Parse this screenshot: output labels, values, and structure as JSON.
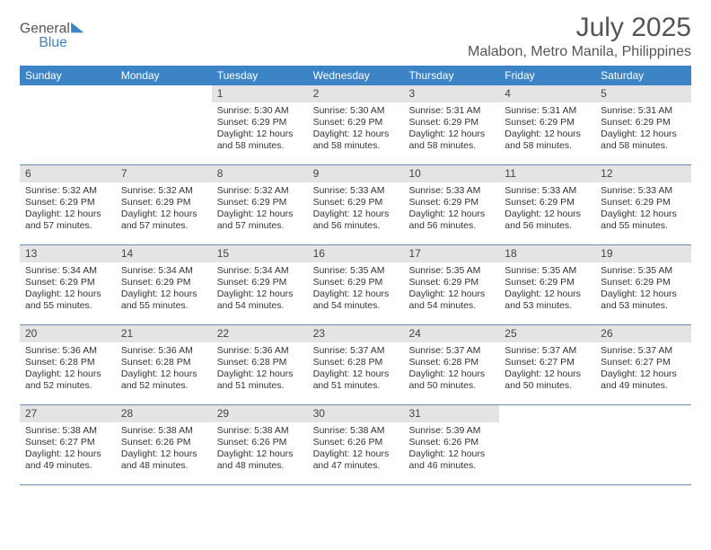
{
  "brand": {
    "name_top": "General",
    "name_bottom": "Blue",
    "accent": "#3d84c6"
  },
  "title": "July 2025",
  "location": "Malabon, Metro Manila, Philippines",
  "colors": {
    "header_bg": "#3d84c6",
    "daynum_bg": "#e4e4e4",
    "week_divider": "#6b8bb0",
    "text": "#333333",
    "title_text": "#555555"
  },
  "dow": [
    "Sunday",
    "Monday",
    "Tuesday",
    "Wednesday",
    "Thursday",
    "Friday",
    "Saturday"
  ],
  "weeks": [
    [
      null,
      null,
      {
        "n": "1",
        "sunrise": "Sunrise: 5:30 AM",
        "sunset": "Sunset: 6:29 PM",
        "daylight": "Daylight: 12 hours and 58 minutes."
      },
      {
        "n": "2",
        "sunrise": "Sunrise: 5:30 AM",
        "sunset": "Sunset: 6:29 PM",
        "daylight": "Daylight: 12 hours and 58 minutes."
      },
      {
        "n": "3",
        "sunrise": "Sunrise: 5:31 AM",
        "sunset": "Sunset: 6:29 PM",
        "daylight": "Daylight: 12 hours and 58 minutes."
      },
      {
        "n": "4",
        "sunrise": "Sunrise: 5:31 AM",
        "sunset": "Sunset: 6:29 PM",
        "daylight": "Daylight: 12 hours and 58 minutes."
      },
      {
        "n": "5",
        "sunrise": "Sunrise: 5:31 AM",
        "sunset": "Sunset: 6:29 PM",
        "daylight": "Daylight: 12 hours and 58 minutes."
      }
    ],
    [
      {
        "n": "6",
        "sunrise": "Sunrise: 5:32 AM",
        "sunset": "Sunset: 6:29 PM",
        "daylight": "Daylight: 12 hours and 57 minutes."
      },
      {
        "n": "7",
        "sunrise": "Sunrise: 5:32 AM",
        "sunset": "Sunset: 6:29 PM",
        "daylight": "Daylight: 12 hours and 57 minutes."
      },
      {
        "n": "8",
        "sunrise": "Sunrise: 5:32 AM",
        "sunset": "Sunset: 6:29 PM",
        "daylight": "Daylight: 12 hours and 57 minutes."
      },
      {
        "n": "9",
        "sunrise": "Sunrise: 5:33 AM",
        "sunset": "Sunset: 6:29 PM",
        "daylight": "Daylight: 12 hours and 56 minutes."
      },
      {
        "n": "10",
        "sunrise": "Sunrise: 5:33 AM",
        "sunset": "Sunset: 6:29 PM",
        "daylight": "Daylight: 12 hours and 56 minutes."
      },
      {
        "n": "11",
        "sunrise": "Sunrise: 5:33 AM",
        "sunset": "Sunset: 6:29 PM",
        "daylight": "Daylight: 12 hours and 56 minutes."
      },
      {
        "n": "12",
        "sunrise": "Sunrise: 5:33 AM",
        "sunset": "Sunset: 6:29 PM",
        "daylight": "Daylight: 12 hours and 55 minutes."
      }
    ],
    [
      {
        "n": "13",
        "sunrise": "Sunrise: 5:34 AM",
        "sunset": "Sunset: 6:29 PM",
        "daylight": "Daylight: 12 hours and 55 minutes."
      },
      {
        "n": "14",
        "sunrise": "Sunrise: 5:34 AM",
        "sunset": "Sunset: 6:29 PM",
        "daylight": "Daylight: 12 hours and 55 minutes."
      },
      {
        "n": "15",
        "sunrise": "Sunrise: 5:34 AM",
        "sunset": "Sunset: 6:29 PM",
        "daylight": "Daylight: 12 hours and 54 minutes."
      },
      {
        "n": "16",
        "sunrise": "Sunrise: 5:35 AM",
        "sunset": "Sunset: 6:29 PM",
        "daylight": "Daylight: 12 hours and 54 minutes."
      },
      {
        "n": "17",
        "sunrise": "Sunrise: 5:35 AM",
        "sunset": "Sunset: 6:29 PM",
        "daylight": "Daylight: 12 hours and 54 minutes."
      },
      {
        "n": "18",
        "sunrise": "Sunrise: 5:35 AM",
        "sunset": "Sunset: 6:29 PM",
        "daylight": "Daylight: 12 hours and 53 minutes."
      },
      {
        "n": "19",
        "sunrise": "Sunrise: 5:35 AM",
        "sunset": "Sunset: 6:29 PM",
        "daylight": "Daylight: 12 hours and 53 minutes."
      }
    ],
    [
      {
        "n": "20",
        "sunrise": "Sunrise: 5:36 AM",
        "sunset": "Sunset: 6:28 PM",
        "daylight": "Daylight: 12 hours and 52 minutes."
      },
      {
        "n": "21",
        "sunrise": "Sunrise: 5:36 AM",
        "sunset": "Sunset: 6:28 PM",
        "daylight": "Daylight: 12 hours and 52 minutes."
      },
      {
        "n": "22",
        "sunrise": "Sunrise: 5:36 AM",
        "sunset": "Sunset: 6:28 PM",
        "daylight": "Daylight: 12 hours and 51 minutes."
      },
      {
        "n": "23",
        "sunrise": "Sunrise: 5:37 AM",
        "sunset": "Sunset: 6:28 PM",
        "daylight": "Daylight: 12 hours and 51 minutes."
      },
      {
        "n": "24",
        "sunrise": "Sunrise: 5:37 AM",
        "sunset": "Sunset: 6:28 PM",
        "daylight": "Daylight: 12 hours and 50 minutes."
      },
      {
        "n": "25",
        "sunrise": "Sunrise: 5:37 AM",
        "sunset": "Sunset: 6:27 PM",
        "daylight": "Daylight: 12 hours and 50 minutes."
      },
      {
        "n": "26",
        "sunrise": "Sunrise: 5:37 AM",
        "sunset": "Sunset: 6:27 PM",
        "daylight": "Daylight: 12 hours and 49 minutes."
      }
    ],
    [
      {
        "n": "27",
        "sunrise": "Sunrise: 5:38 AM",
        "sunset": "Sunset: 6:27 PM",
        "daylight": "Daylight: 12 hours and 49 minutes."
      },
      {
        "n": "28",
        "sunrise": "Sunrise: 5:38 AM",
        "sunset": "Sunset: 6:26 PM",
        "daylight": "Daylight: 12 hours and 48 minutes."
      },
      {
        "n": "29",
        "sunrise": "Sunrise: 5:38 AM",
        "sunset": "Sunset: 6:26 PM",
        "daylight": "Daylight: 12 hours and 48 minutes."
      },
      {
        "n": "30",
        "sunrise": "Sunrise: 5:38 AM",
        "sunset": "Sunset: 6:26 PM",
        "daylight": "Daylight: 12 hours and 47 minutes."
      },
      {
        "n": "31",
        "sunrise": "Sunrise: 5:39 AM",
        "sunset": "Sunset: 6:26 PM",
        "daylight": "Daylight: 12 hours and 46 minutes."
      },
      null,
      null
    ]
  ]
}
